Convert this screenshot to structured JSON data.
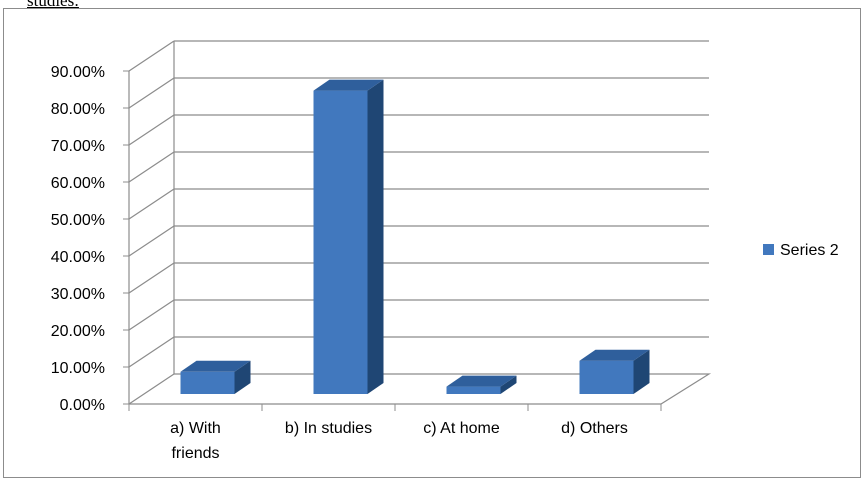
{
  "page": {
    "fragment_text": "studies:"
  },
  "chart_data": {
    "type": "bar",
    "style": "3d-column",
    "categories": [
      "a) With friends",
      "b) In studies",
      "c) At home",
      "d) Others"
    ],
    "category_lines": [
      [
        "a) With",
        "friends"
      ],
      [
        "b) In studies"
      ],
      [
        "c) At home"
      ],
      [
        "d) Others"
      ]
    ],
    "series": [
      {
        "name": "Series 2",
        "values": [
          0.06,
          0.82,
          0.02,
          0.09
        ],
        "color": "#4178be"
      }
    ],
    "ylim": [
      0,
      0.9
    ],
    "yticks": [
      {
        "value": 0.0,
        "label": "0.00%"
      },
      {
        "value": 0.1,
        "label": "10.00%"
      },
      {
        "value": 0.2,
        "label": "20.00%"
      },
      {
        "value": 0.3,
        "label": "30.00%"
      },
      {
        "value": 0.4,
        "label": "40.00%"
      },
      {
        "value": 0.5,
        "label": "50.00%"
      },
      {
        "value": 0.6,
        "label": "60.00%"
      },
      {
        "value": 0.7,
        "label": "70.00%"
      },
      {
        "value": 0.8,
        "label": "80.00%"
      },
      {
        "value": 0.9,
        "label": "90.00%"
      }
    ],
    "grid": true,
    "legend": {
      "position": "right",
      "label": "Series 2"
    },
    "colors": {
      "bar_front": "#4178be",
      "bar_top": "#2f5f9c",
      "bar_side": "#1f4674",
      "grid": "#8c8c8c",
      "axis": "#8c8c8c"
    }
  }
}
